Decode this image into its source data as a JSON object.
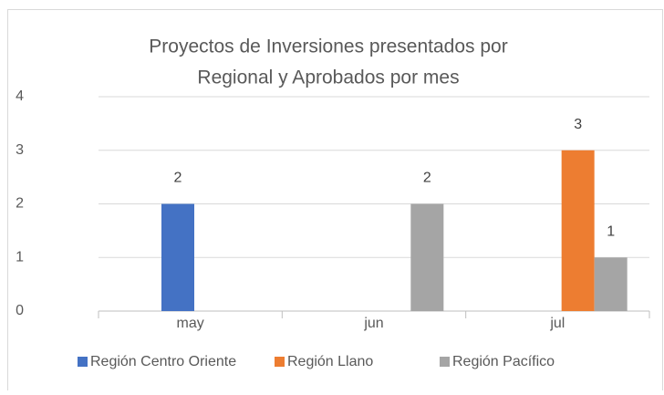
{
  "chart_data": {
    "type": "bar",
    "title": [
      "Proyectos de Inversiones presentados por",
      "Regional y  Aprobados por mes"
    ],
    "categories": [
      "may",
      "jun",
      "jul"
    ],
    "series": [
      {
        "name": "Región Centro Oriente",
        "color": "#4472c4",
        "values": [
          2,
          null,
          null
        ]
      },
      {
        "name": "Región Llano",
        "color": "#ed7d31",
        "values": [
          null,
          null,
          3
        ]
      },
      {
        "name": "Región Pacífico",
        "color": "#a5a5a5",
        "values": [
          null,
          2,
          1
        ]
      }
    ],
    "ylim": [
      0,
      4
    ],
    "yticks": [
      0,
      1,
      2,
      3,
      4
    ],
    "grid": true,
    "legend": "bottom"
  }
}
